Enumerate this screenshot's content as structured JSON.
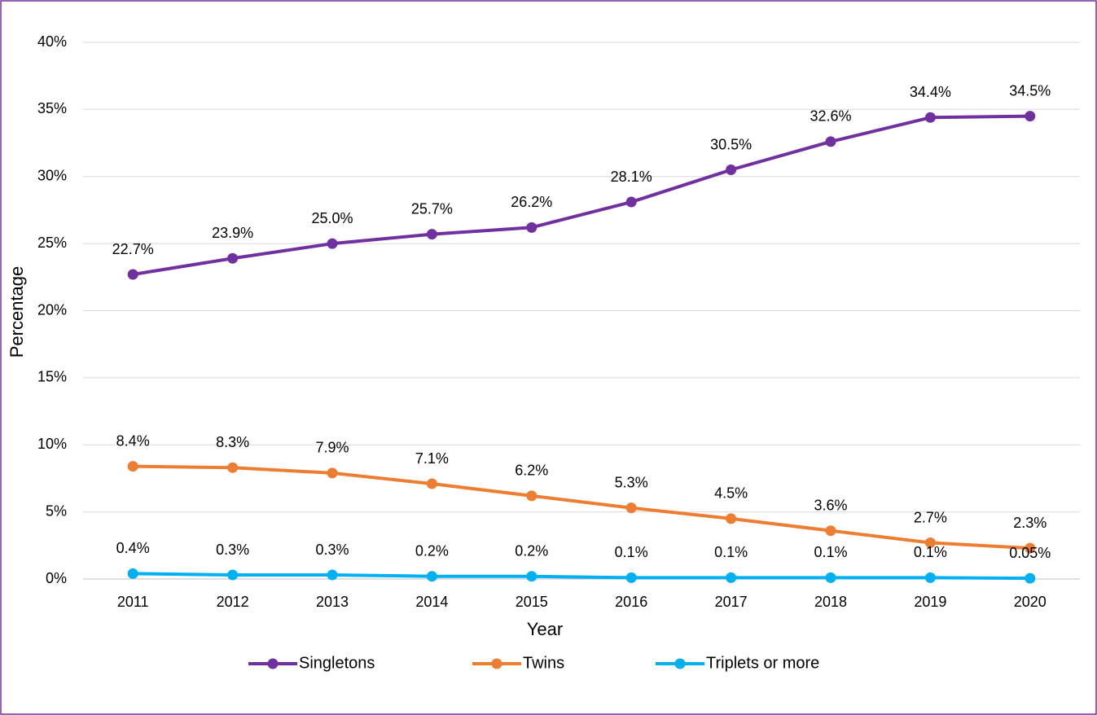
{
  "chart_data": {
    "type": "line",
    "x_label": "Year",
    "y_label": "Percentage",
    "categories": [
      "2011",
      "2012",
      "2013",
      "2014",
      "2015",
      "2016",
      "2017",
      "2018",
      "2019",
      "2020"
    ],
    "series": [
      {
        "name": "Singletons",
        "color": "#7030a0",
        "values": [
          22.7,
          23.9,
          25.0,
          25.7,
          26.2,
          28.1,
          30.5,
          32.6,
          34.4,
          34.5
        ],
        "value_labels": [
          "22.7%",
          "23.9%",
          "25.0%",
          "25.7%",
          "26.2%",
          "28.1%",
          "30.5%",
          "32.6%",
          "34.4%",
          "34.5%"
        ]
      },
      {
        "name": "Twins",
        "color": "#ed7d31",
        "values": [
          8.4,
          8.3,
          7.9,
          7.1,
          6.2,
          5.3,
          4.5,
          3.6,
          2.7,
          2.3
        ],
        "value_labels": [
          "8.4%",
          "8.3%",
          "7.9%",
          "7.1%",
          "6.2%",
          "5.3%",
          "4.5%",
          "3.6%",
          "2.7%",
          "2.3%"
        ]
      },
      {
        "name": "Triplets or more",
        "color": "#00b0f0",
        "values": [
          0.4,
          0.3,
          0.3,
          0.2,
          0.2,
          0.1,
          0.1,
          0.1,
          0.1,
          0.05
        ],
        "value_labels": [
          "0.4%",
          "0.3%",
          "0.3%",
          "0.2%",
          "0.2%",
          "0.1%",
          "0.1%",
          "0.1%",
          "0.1%",
          "0.05%"
        ]
      }
    ],
    "ylim": [
      0,
      40
    ],
    "yticks": [
      {
        "value": 0,
        "label": "0%"
      },
      {
        "value": 5,
        "label": "5%"
      },
      {
        "value": 10,
        "label": "10%"
      },
      {
        "value": 15,
        "label": "15%"
      },
      {
        "value": 20,
        "label": "20%"
      },
      {
        "value": 25,
        "label": "25%"
      },
      {
        "value": 30,
        "label": "30%"
      },
      {
        "value": 35,
        "label": "35%"
      },
      {
        "value": 40,
        "label": "40%"
      }
    ],
    "grid": true,
    "legend": "bottom"
  }
}
